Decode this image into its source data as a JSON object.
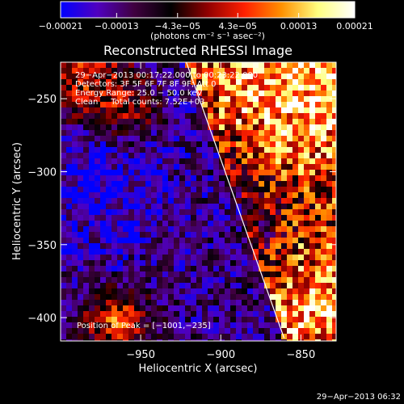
{
  "chart_data": {
    "type": "heatmap",
    "title": "Reconstructed RHESSI Image",
    "xlabel": "Heliocentric X (arcsec)",
    "ylabel": "Heliocentric Y (arcsec)",
    "xlim": [
      -1000,
      -828
    ],
    "ylim": [
      -416,
      -225
    ],
    "x_ticks": [
      -950,
      -900,
      -850
    ],
    "x_tick_labels": [
      "−950",
      "−900",
      "−850"
    ],
    "y_ticks": [
      -250,
      -300,
      -350,
      -400
    ],
    "y_tick_labels": [
      "−250",
      "−300",
      "−350",
      "−400"
    ],
    "colorbar": {
      "min": -0.00021,
      "max": 0.00021,
      "ticks": [
        -0.00021,
        -0.00013,
        -4.3e-05,
        4.3e-05,
        0.00013,
        0.00021
      ],
      "tick_labels": [
        "−0.00021",
        "−0.00013",
        "−4.3e−05",
        "4.3e−05",
        "0.00013",
        "0.00021"
      ],
      "units_label": "(photons cm⁻² s⁻¹ asec⁻²)",
      "colormap": [
        "#0000ff",
        "#5000c0",
        "#400040",
        "#000000",
        "#900000",
        "#ff2000",
        "#ff9000",
        "#ffff80",
        "#ffffff"
      ]
    },
    "annotations": [
      "29−Apr−2013 00:17:22.000 to 00:23:22.000",
      "Detectors: 3F 5F 6F 7F 8F 9F; Att 0",
      "Energy Range: 25.0 − 50.0 keV",
      "Clean     Total counts: 7.52E+03"
    ],
    "peak_label": "Position of Peak = [−1001,−235]",
    "limb_line": {
      "x": [
        -921.5,
        -860.5
      ],
      "y": [
        -225,
        -414
      ]
    },
    "timestamp": "29−Apr−2013 06:32",
    "grid": false,
    "legend": "none"
  }
}
